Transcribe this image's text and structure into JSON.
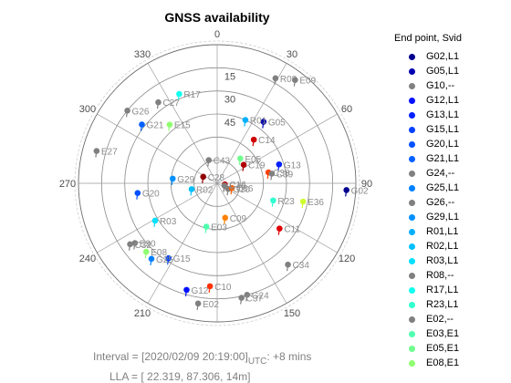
{
  "chart_data": {
    "type": "scatter",
    "projection": "polar-skyplot",
    "title": "GNSS availability",
    "azimuth_ticks": [
      0,
      30,
      60,
      90,
      120,
      150,
      180,
      210,
      240,
      270,
      300,
      330
    ],
    "azimuth_tick_labels": [
      "0",
      "30",
      "60",
      "90",
      "120",
      "150",
      "",
      "210",
      "240",
      "270",
      "300",
      "330"
    ],
    "elevation_ticks": [
      15,
      30,
      45,
      60,
      75,
      90
    ],
    "elevation_tick_labels": [
      "15",
      "30",
      "45",
      "",
      "",
      ""
    ],
    "elevation_range": [
      0,
      90
    ],
    "grid": true,
    "legend_title": "End point, Svid",
    "legend_position": "right",
    "legend": [
      {
        "label": "G02,L1",
        "color": "#00008f"
      },
      {
        "label": "G05,L1",
        "color": "#0000b0"
      },
      {
        "label": "G10,--",
        "color": "#808080"
      },
      {
        "label": "G12,L1",
        "color": "#0010ff"
      },
      {
        "label": "G13,L1",
        "color": "#0020ff"
      },
      {
        "label": "G15,L1",
        "color": "#0040ff"
      },
      {
        "label": "G20,L1",
        "color": "#0050ff"
      },
      {
        "label": "G21,L1",
        "color": "#0060ff"
      },
      {
        "label": "G24,--",
        "color": "#808080"
      },
      {
        "label": "G25,L1",
        "color": "#0080ff"
      },
      {
        "label": "G26,--",
        "color": "#808080"
      },
      {
        "label": "G29,L1",
        "color": "#0090ff"
      },
      {
        "label": "R01,L1",
        "color": "#00b0ff"
      },
      {
        "label": "R02,L1",
        "color": "#00c0ff"
      },
      {
        "label": "R03,L1",
        "color": "#00e0ff"
      },
      {
        "label": "R08,--",
        "color": "#808080"
      },
      {
        "label": "R17,L1",
        "color": "#10ffef"
      },
      {
        "label": "R23,L1",
        "color": "#30ffcf"
      },
      {
        "label": "E02,--",
        "color": "#808080"
      },
      {
        "label": "E03,E1",
        "color": "#50ffaf"
      },
      {
        "label": "E05,E1",
        "color": "#70ff8f"
      },
      {
        "label": "E08,E1",
        "color": "#8fff70"
      }
    ],
    "satellites": [
      {
        "label": "G02",
        "az": 93,
        "el": 6,
        "color": "#00008f"
      },
      {
        "label": "G05",
        "az": 37,
        "el": 40,
        "color": "#0000b0"
      },
      {
        "label": "G10",
        "az": 117,
        "el": 82,
        "color": "#808080"
      },
      {
        "label": "G12",
        "az": 196,
        "el": 18,
        "color": "#0010ff"
      },
      {
        "label": "G13",
        "az": 73,
        "el": 48,
        "color": "#0020ff"
      },
      {
        "label": "G15",
        "az": 213,
        "el": 32,
        "color": "#0040ff"
      },
      {
        "label": "G20",
        "az": 263,
        "el": 38,
        "color": "#0050ff"
      },
      {
        "label": "G21",
        "az": 308,
        "el": 28,
        "color": "#0060ff"
      },
      {
        "label": "G24",
        "az": 165,
        "el": 15,
        "color": "#808080"
      },
      {
        "label": "G25",
        "az": 221,
        "el": 25,
        "color": "#0080ff"
      },
      {
        "label": "G26",
        "az": 309,
        "el": 15,
        "color": "#808080"
      },
      {
        "label": "G29",
        "az": 276,
        "el": 61,
        "color": "#0090ff"
      },
      {
        "label": "R01",
        "az": 24,
        "el": 45,
        "color": "#00b0ff"
      },
      {
        "label": "R02",
        "az": 257,
        "el": 73,
        "color": "#00c0ff"
      },
      {
        "label": "R03",
        "az": 239,
        "el": 43,
        "color": "#00e0ff"
      },
      {
        "label": "R08",
        "az": 29,
        "el": 12,
        "color": "#808080"
      },
      {
        "label": "R17",
        "az": 337,
        "el": 27,
        "color": "#10ffef"
      },
      {
        "label": "R23",
        "az": 107,
        "el": 52,
        "color": "#30ffcf"
      },
      {
        "label": "E02",
        "az": 189,
        "el": 11,
        "color": "#808080"
      },
      {
        "label": "E03",
        "az": 194,
        "el": 61,
        "color": "#50ffaf"
      },
      {
        "label": "E05",
        "az": 43,
        "el": 68,
        "color": "#70ff8f"
      },
      {
        "label": "E08",
        "az": 226,
        "el": 26,
        "color": "#8fff70"
      },
      {
        "label": "E09",
        "az": 37,
        "el": 6,
        "color": "#808080"
      },
      {
        "label": "E15",
        "az": 321,
        "el": 41,
        "color": "#8fff70"
      },
      {
        "label": "E27",
        "az": 285,
        "el": 9,
        "color": "#808080"
      },
      {
        "label": "E30",
        "az": 234,
        "el": 24,
        "color": "#808080"
      },
      {
        "label": "E36",
        "az": 102,
        "el": 33,
        "color": "#cfff30"
      },
      {
        "label": "C06",
        "az": 108,
        "el": 80,
        "color": "#ff6000"
      },
      {
        "label": "C09",
        "az": 167,
        "el": 67,
        "color": "#ff8000"
      },
      {
        "label": "C10",
        "az": 184,
        "el": 23,
        "color": "#ff3000"
      },
      {
        "label": "C11",
        "az": 126,
        "el": 40,
        "color": "#e00000"
      },
      {
        "label": "C14",
        "az": 40,
        "el": 53,
        "color": "#d00000"
      },
      {
        "label": "C16",
        "az": 98,
        "el": 85,
        "color": "#c00000"
      },
      {
        "label": "C19",
        "az": 55,
        "el": 69,
        "color": "#b00000"
      },
      {
        "label": "C27",
        "az": 324,
        "el": 25,
        "color": "#808080"
      },
      {
        "label": "C28",
        "az": 295,
        "el": 80,
        "color": "#900000"
      },
      {
        "label": "C32",
        "az": 235,
        "el": 21,
        "color": "#808080"
      },
      {
        "label": "C34",
        "az": 139,
        "el": 20,
        "color": "#808080"
      },
      {
        "label": "C37",
        "az": 168,
        "el": 14,
        "color": "#808080"
      },
      {
        "label": "C38",
        "az": 78,
        "el": 56,
        "color": "#ff4000"
      },
      {
        "label": "C39",
        "az": 80,
        "el": 54,
        "color": "#808080"
      },
      {
        "label": "C43",
        "az": 340,
        "el": 74,
        "color": "#808080"
      },
      {
        "label": "C46",
        "az": 108,
        "el": 85,
        "color": "#808080"
      }
    ]
  },
  "footer": {
    "interval_prefix": "Interval = [2020/02/09  20:19:00]",
    "interval_sub": "UTC",
    "interval_suffix": ": +8 mins",
    "lla": "LLA = [ 22.319,   87.306, 14m]"
  }
}
